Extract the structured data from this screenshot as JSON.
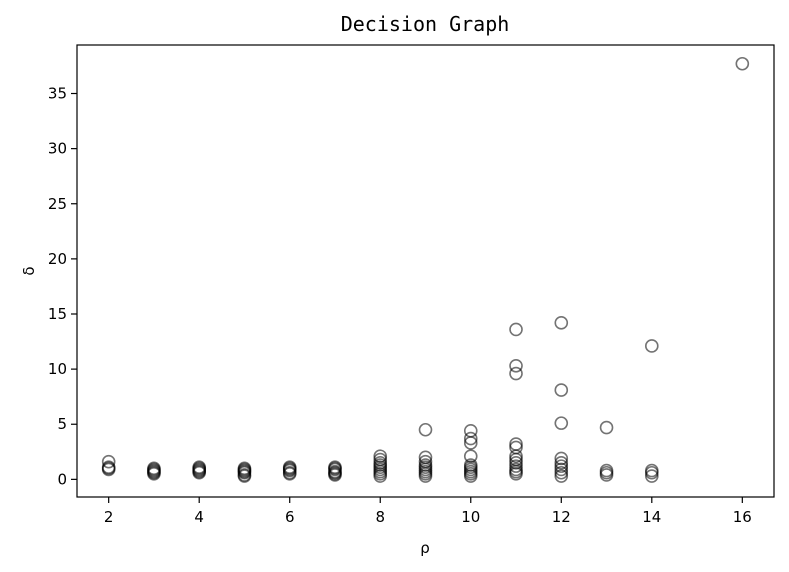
{
  "chart_data": {
    "type": "scatter",
    "title": "Decision Graph",
    "xlabel": "ρ",
    "ylabel": "δ",
    "xlim": [
      1.3,
      16.7
    ],
    "ylim": [
      -1.6,
      39.4
    ],
    "xticks": [
      2,
      4,
      6,
      8,
      10,
      12,
      14,
      16
    ],
    "yticks": [
      0,
      5,
      10,
      15,
      20,
      25,
      30,
      35
    ],
    "grid": false,
    "legend": "none",
    "marker_color": "#000000",
    "series": [
      {
        "points": [
          [
            2,
            0.9
          ],
          [
            2,
            1.1
          ],
          [
            2,
            1.6
          ],
          [
            2,
            1.0
          ],
          [
            3,
            0.5
          ],
          [
            3,
            0.7
          ],
          [
            3,
            0.8
          ],
          [
            3,
            0.9
          ],
          [
            3,
            1.0
          ],
          [
            3,
            0.6
          ],
          [
            4,
            0.6
          ],
          [
            4,
            0.7
          ],
          [
            4,
            0.8
          ],
          [
            4,
            0.9
          ],
          [
            4,
            1.0
          ],
          [
            4,
            1.1
          ],
          [
            5,
            0.3
          ],
          [
            5,
            0.4
          ],
          [
            5,
            0.6
          ],
          [
            5,
            0.7
          ],
          [
            5,
            0.8
          ],
          [
            5,
            0.9
          ],
          [
            5,
            1.0
          ],
          [
            6,
            0.5
          ],
          [
            6,
            0.6
          ],
          [
            6,
            0.8
          ],
          [
            6,
            0.9
          ],
          [
            6,
            1.0
          ],
          [
            6,
            1.1
          ],
          [
            7,
            0.4
          ],
          [
            7,
            0.5
          ],
          [
            7,
            0.6
          ],
          [
            7,
            0.7
          ],
          [
            7,
            0.9
          ],
          [
            7,
            1.0
          ],
          [
            7,
            1.1
          ],
          [
            8,
            0.3
          ],
          [
            8,
            0.5
          ],
          [
            8,
            0.7
          ],
          [
            8,
            0.9
          ],
          [
            8,
            1.1
          ],
          [
            8,
            1.3
          ],
          [
            8,
            1.5
          ],
          [
            8,
            1.8
          ],
          [
            8,
            2.1
          ],
          [
            9,
            0.3
          ],
          [
            9,
            0.5
          ],
          [
            9,
            0.7
          ],
          [
            9,
            0.9
          ],
          [
            9,
            1.1
          ],
          [
            9,
            1.3
          ],
          [
            9,
            1.6
          ],
          [
            9,
            2.0
          ],
          [
            9,
            4.5
          ],
          [
            10,
            0.3
          ],
          [
            10,
            0.5
          ],
          [
            10,
            0.7
          ],
          [
            10,
            0.9
          ],
          [
            10,
            1.1
          ],
          [
            10,
            1.3
          ],
          [
            10,
            2.1
          ],
          [
            10,
            3.3
          ],
          [
            10,
            3.7
          ],
          [
            10,
            4.4
          ],
          [
            11,
            0.5
          ],
          [
            11,
            0.7
          ],
          [
            11,
            0.9
          ],
          [
            11,
            1.2
          ],
          [
            11,
            1.5
          ],
          [
            11,
            1.8
          ],
          [
            11,
            2.1
          ],
          [
            11,
            2.9
          ],
          [
            11,
            3.2
          ],
          [
            11,
            9.6
          ],
          [
            11,
            10.3
          ],
          [
            11,
            13.6
          ],
          [
            12,
            0.3
          ],
          [
            12,
            0.6
          ],
          [
            12,
            0.9
          ],
          [
            12,
            1.2
          ],
          [
            12,
            1.5
          ],
          [
            12,
            1.9
          ],
          [
            12,
            5.1
          ],
          [
            12,
            8.1
          ],
          [
            12,
            14.2
          ],
          [
            13,
            0.4
          ],
          [
            13,
            0.6
          ],
          [
            13,
            0.8
          ],
          [
            13,
            4.7
          ],
          [
            14,
            0.3
          ],
          [
            14,
            0.6
          ],
          [
            14,
            0.8
          ],
          [
            14,
            12.1
          ],
          [
            16,
            37.7
          ]
        ]
      }
    ]
  }
}
